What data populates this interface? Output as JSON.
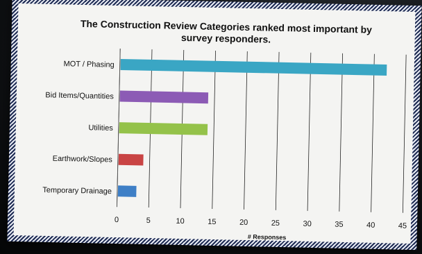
{
  "chart_data": {
    "type": "bar",
    "orientation": "horizontal",
    "title_lines": [
      "The Construction Review Categories ranked most important by",
      "survey responders."
    ],
    "xlabel": "# Responses",
    "ylabel": "",
    "xlim": [
      0,
      45
    ],
    "x_ticks": [
      0,
      5,
      10,
      15,
      20,
      25,
      30,
      35,
      40,
      45
    ],
    "grid": "vertical",
    "legend": "none",
    "categories": [
      "MOT / Phasing",
      "Bid Items/Quantities",
      "Utilities",
      "Earthwork/Slopes",
      "Temporary Drainage"
    ],
    "values": [
      42,
      14,
      14,
      4,
      3
    ],
    "colors": [
      "#3aa6c4",
      "#8c5bb5",
      "#94c24a",
      "#c94444",
      "#3e7fc6"
    ]
  }
}
